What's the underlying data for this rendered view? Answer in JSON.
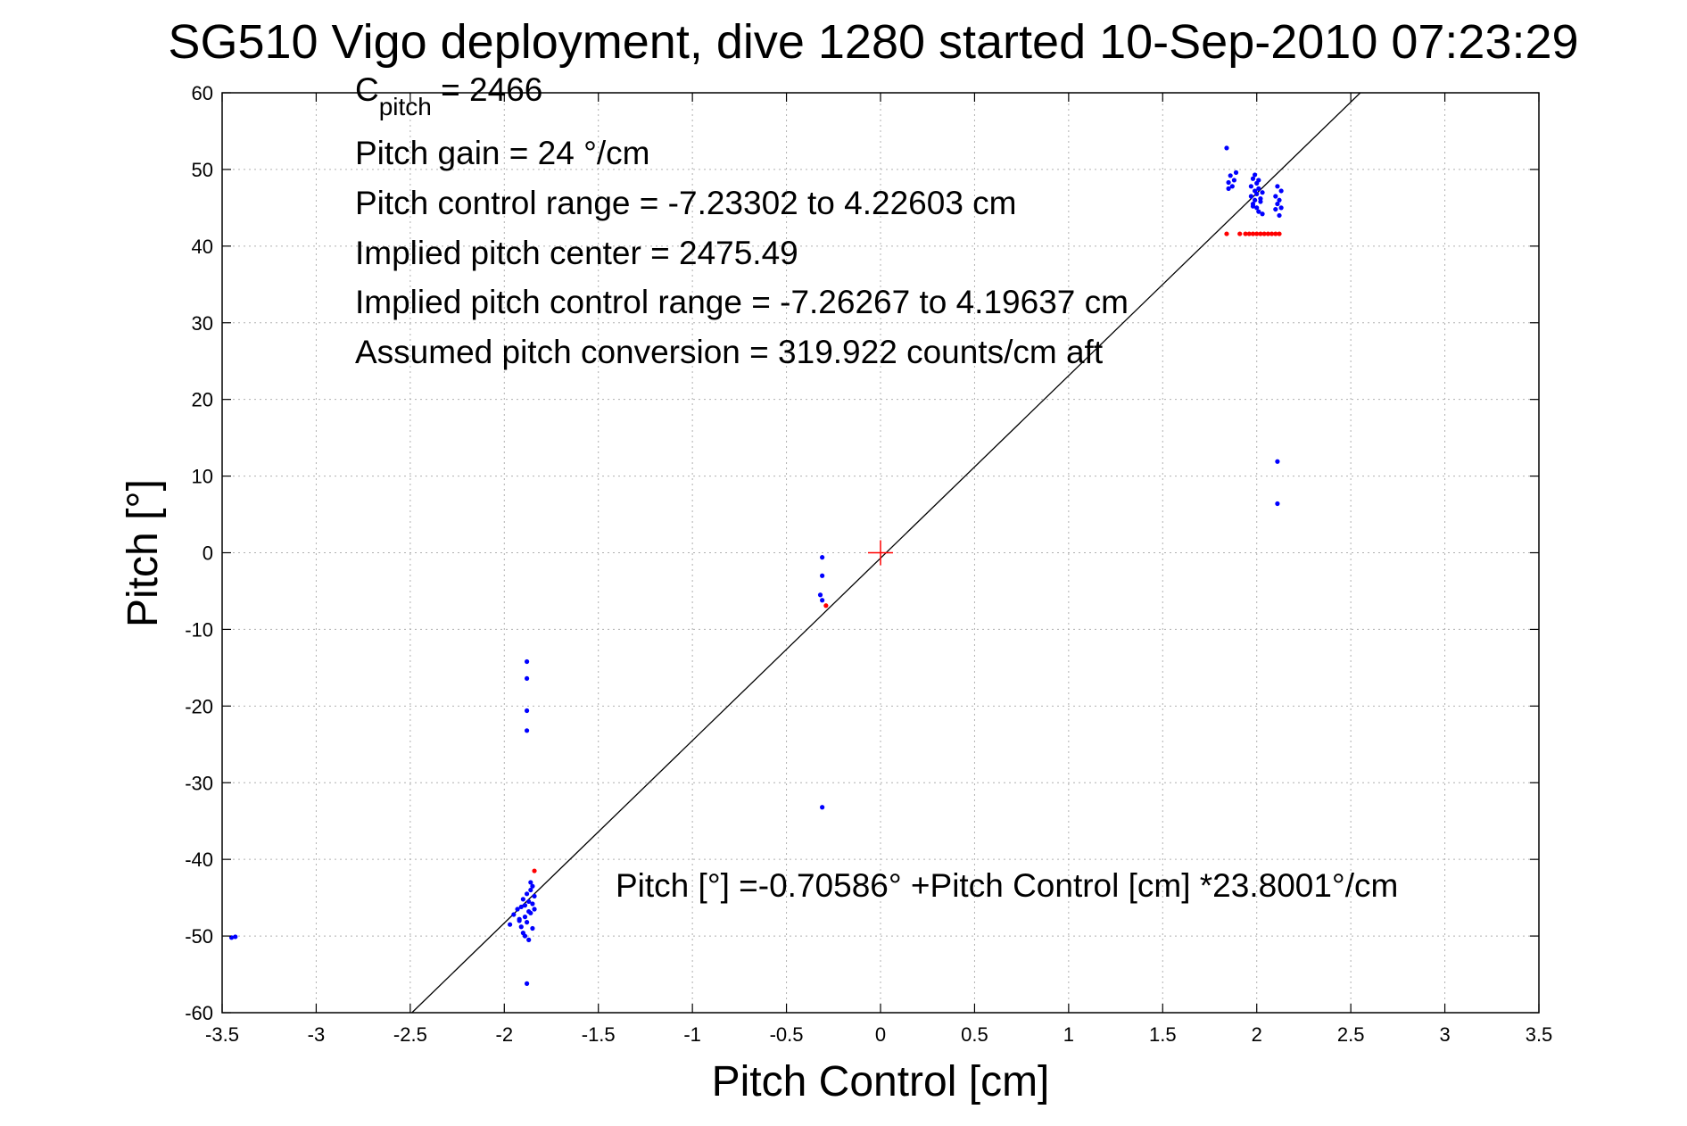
{
  "chart_data": {
    "type": "scatter",
    "title": "SG510 Vigo deployment, dive 1280 started 10-Sep-2010 07:23:29",
    "xlabel": "Pitch Control [cm]",
    "ylabel": "Pitch [°]",
    "xlim": [
      -3.5,
      3.5
    ],
    "ylim": [
      -60,
      60
    ],
    "xticks": [
      -3.5,
      -3,
      -2.5,
      -2,
      -1.5,
      -1,
      -0.5,
      0,
      0.5,
      1,
      1.5,
      2,
      2.5,
      3,
      3.5
    ],
    "xtick_labels": [
      "-3.5",
      "-3",
      "-2.5",
      "-2",
      "-1.5",
      "-1",
      "-0.5",
      "0",
      "0.5",
      "1",
      "1.5",
      "2",
      "2.5",
      "3",
      "3.5"
    ],
    "yticks": [
      -60,
      -50,
      -40,
      -30,
      -20,
      -10,
      0,
      10,
      20,
      30,
      40,
      50,
      60
    ],
    "ytick_labels": [
      "-60",
      "-50",
      "-40",
      "-30",
      "-20",
      "-10",
      "0",
      "10",
      "20",
      "30",
      "40",
      "50",
      "60"
    ],
    "grid": true,
    "annotations": [
      {
        "main": "C",
        "sub": "pitch",
        "rest": " = 2466"
      },
      {
        "main": "Pitch gain = 24 °/cm"
      },
      {
        "main": "Pitch control range = -7.23302 to 4.22603 cm"
      },
      {
        "main": "Implied pitch center = 2475.49"
      },
      {
        "main": "Implied pitch control range = -7.26267 to 4.19637 cm"
      },
      {
        "main": "Assumed pitch conversion = 319.922 counts/cm aft"
      }
    ],
    "fit_label": "Pitch [°] =-0.70586° +Pitch Control [cm] *23.8001°/cm",
    "fit_line": {
      "intercept": -0.70586,
      "slope": 23.8001,
      "color": "#000000"
    },
    "center_marker": {
      "x": 0,
      "y": 0,
      "color": "#ff0000"
    },
    "series": [
      {
        "color": "#0000ff",
        "points": [
          [
            -3.45,
            -50.2
          ],
          [
            -3.43,
            -50.1
          ],
          [
            -1.97,
            -48.5
          ],
          [
            -1.95,
            -47.2
          ],
          [
            -1.93,
            -46.5
          ],
          [
            -1.92,
            -47.8
          ],
          [
            -1.91,
            -48.8
          ],
          [
            -1.9,
            -49.6
          ],
          [
            -1.9,
            -45.2
          ],
          [
            -1.89,
            -46.0
          ],
          [
            -1.89,
            -47.5
          ],
          [
            -1.88,
            -44.5
          ],
          [
            -1.88,
            -48.2
          ],
          [
            -1.87,
            -46.8
          ],
          [
            -1.87,
            -45.5
          ],
          [
            -1.86,
            -47.0
          ],
          [
            -1.86,
            -44.0
          ],
          [
            -1.85,
            -45.8
          ],
          [
            -1.85,
            -43.5
          ],
          [
            -1.84,
            -46.5
          ],
          [
            -1.84,
            -44.8
          ],
          [
            -1.85,
            -49.0
          ],
          [
            -1.87,
            -50.5
          ],
          [
            -1.88,
            -56.2
          ],
          [
            -1.89,
            -50.0
          ],
          [
            -1.91,
            -46.2
          ],
          [
            -1.92,
            -48.0
          ],
          [
            -1.86,
            -43.0
          ],
          [
            -1.88,
            -14.2
          ],
          [
            -1.88,
            -16.4
          ],
          [
            -1.88,
            -20.6
          ],
          [
            -1.88,
            -23.2
          ],
          [
            -0.31,
            -0.6
          ],
          [
            -0.31,
            -3.0
          ],
          [
            -0.32,
            -5.5
          ],
          [
            -0.31,
            -6.2
          ],
          [
            -0.31,
            -33.2
          ],
          [
            1.84,
            52.8
          ],
          [
            1.85,
            47.5
          ],
          [
            1.85,
            48.3
          ],
          [
            1.86,
            49.2
          ],
          [
            1.87,
            47.8
          ],
          [
            1.88,
            48.6
          ],
          [
            1.89,
            49.6
          ],
          [
            1.97,
            46.5
          ],
          [
            1.97,
            47.8
          ],
          [
            1.98,
            45.5
          ],
          [
            1.98,
            48.8
          ],
          [
            1.99,
            46.0
          ],
          [
            1.99,
            47.2
          ],
          [
            1.99,
            49.3
          ],
          [
            2.0,
            45.0
          ],
          [
            2.0,
            46.8
          ],
          [
            2.0,
            48.2
          ],
          [
            2.01,
            44.5
          ],
          [
            2.01,
            47.5
          ],
          [
            2.02,
            46.2
          ],
          [
            2.02,
            45.8
          ],
          [
            2.03,
            47.0
          ],
          [
            2.03,
            44.2
          ],
          [
            1.98,
            45.2
          ],
          [
            2.01,
            48.6
          ],
          [
            2.1,
            44.8
          ],
          [
            2.1,
            46.5
          ],
          [
            2.11,
            47.8
          ],
          [
            2.11,
            45.5
          ],
          [
            2.12,
            46.0
          ],
          [
            2.12,
            44.0
          ],
          [
            2.13,
            47.2
          ],
          [
            2.13,
            45.0
          ],
          [
            2.11,
            11.9
          ],
          [
            2.11,
            6.4
          ]
        ]
      },
      {
        "color": "#ff0000",
        "points": [
          [
            -1.84,
            -41.5
          ],
          [
            -0.29,
            -6.9
          ],
          [
            1.84,
            41.6
          ],
          [
            1.91,
            41.6
          ],
          [
            1.94,
            41.6
          ],
          [
            1.96,
            41.6
          ],
          [
            1.98,
            41.6
          ],
          [
            2.0,
            41.6
          ],
          [
            2.02,
            41.6
          ],
          [
            2.04,
            41.6
          ],
          [
            2.06,
            41.6
          ],
          [
            2.08,
            41.6
          ],
          [
            2.1,
            41.6
          ],
          [
            2.12,
            41.6
          ]
        ]
      }
    ]
  }
}
